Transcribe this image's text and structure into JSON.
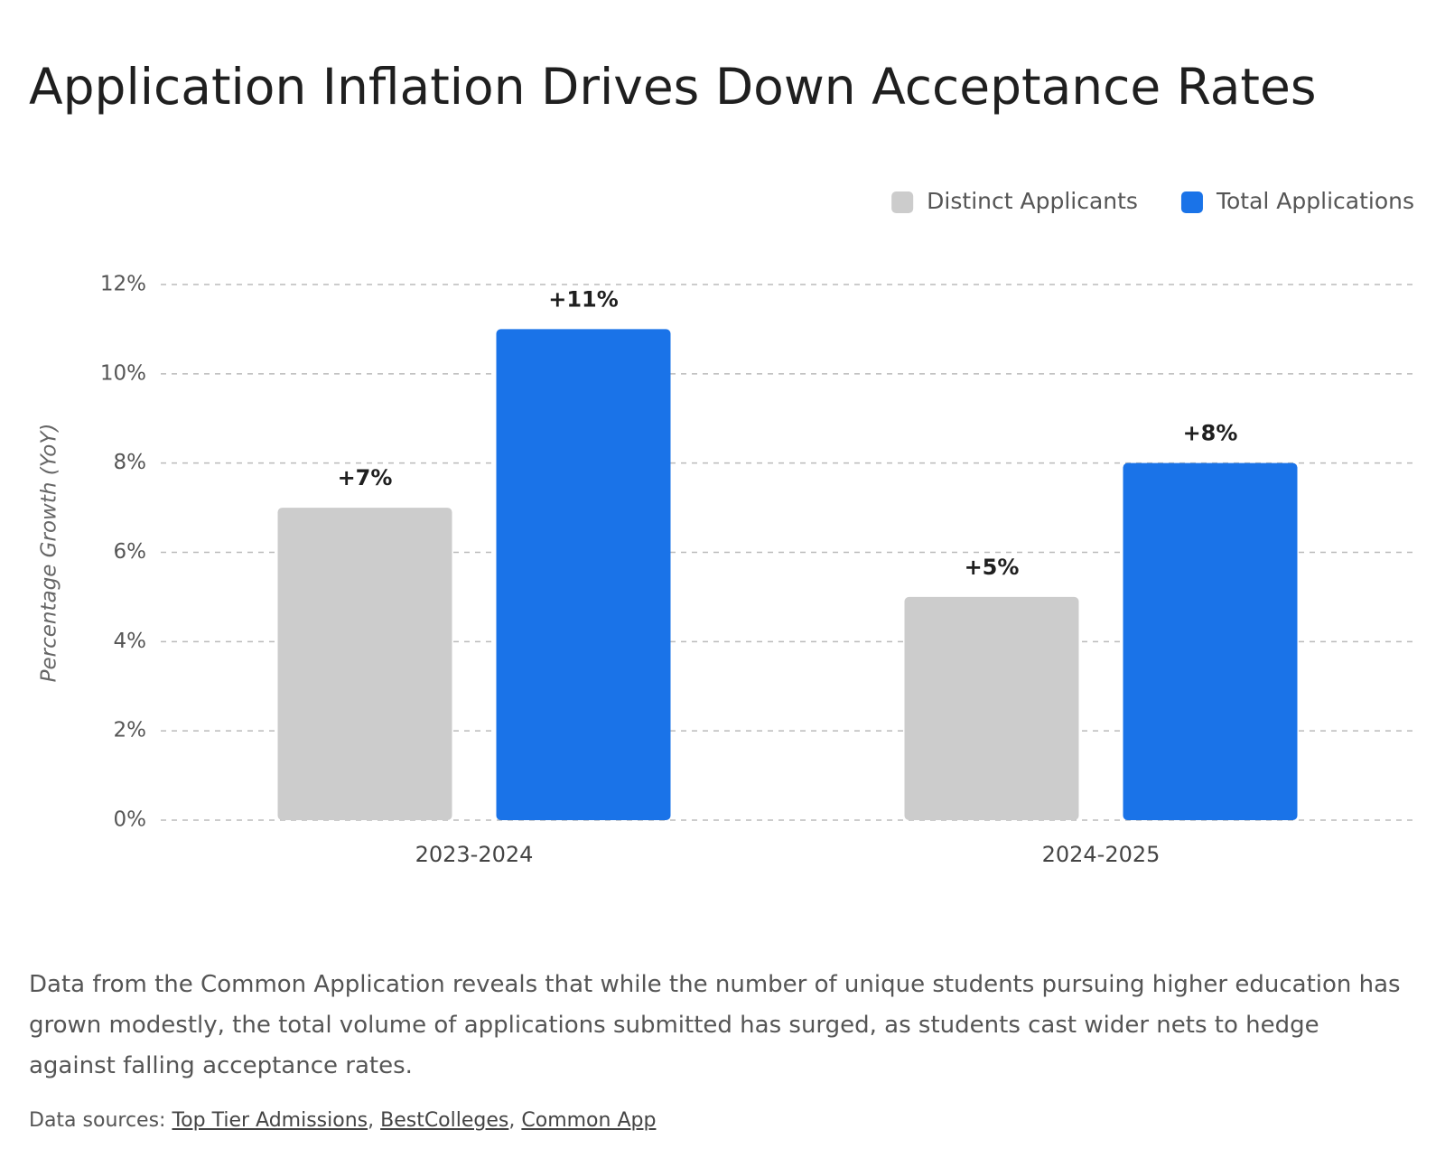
{
  "chart_data": {
    "type": "bar",
    "title": "Application Inflation Drives Down Acceptance Rates",
    "y_label": "Percentage Growth (YoY)",
    "categories": [
      "2023-2024",
      "2024-2025"
    ],
    "series": [
      {
        "name": "Distinct Applicants",
        "color": "#cccccc",
        "values": [
          7,
          5
        ],
        "value_labels": [
          "+7%",
          "+5%"
        ]
      },
      {
        "name": "Total Applications",
        "color": "#1a73e8",
        "values": [
          11,
          8
        ],
        "value_labels": [
          "+11%",
          "+8%"
        ]
      }
    ],
    "ylim": [
      0,
      12
    ],
    "yticks": [
      {
        "value": 0,
        "label": "0%"
      },
      {
        "value": 2,
        "label": "2%"
      },
      {
        "value": 4,
        "label": "4%"
      },
      {
        "value": 6,
        "label": "6%"
      },
      {
        "value": 8,
        "label": "8%"
      },
      {
        "value": 10,
        "label": "10%"
      },
      {
        "value": 12,
        "label": "12%"
      }
    ],
    "grid": true,
    "legend": "top-right"
  },
  "description": "Data from the Common Application reveals that while the number of unique students pursuing higher education has grown modestly, the total volume of applications submitted has surged, as students cast wider nets to hedge against falling acceptance rates.",
  "sources": {
    "label": "Data sources:",
    "separator": ",",
    "links": [
      "Top Tier Admissions",
      "BestColleges",
      "Common App"
    ]
  }
}
